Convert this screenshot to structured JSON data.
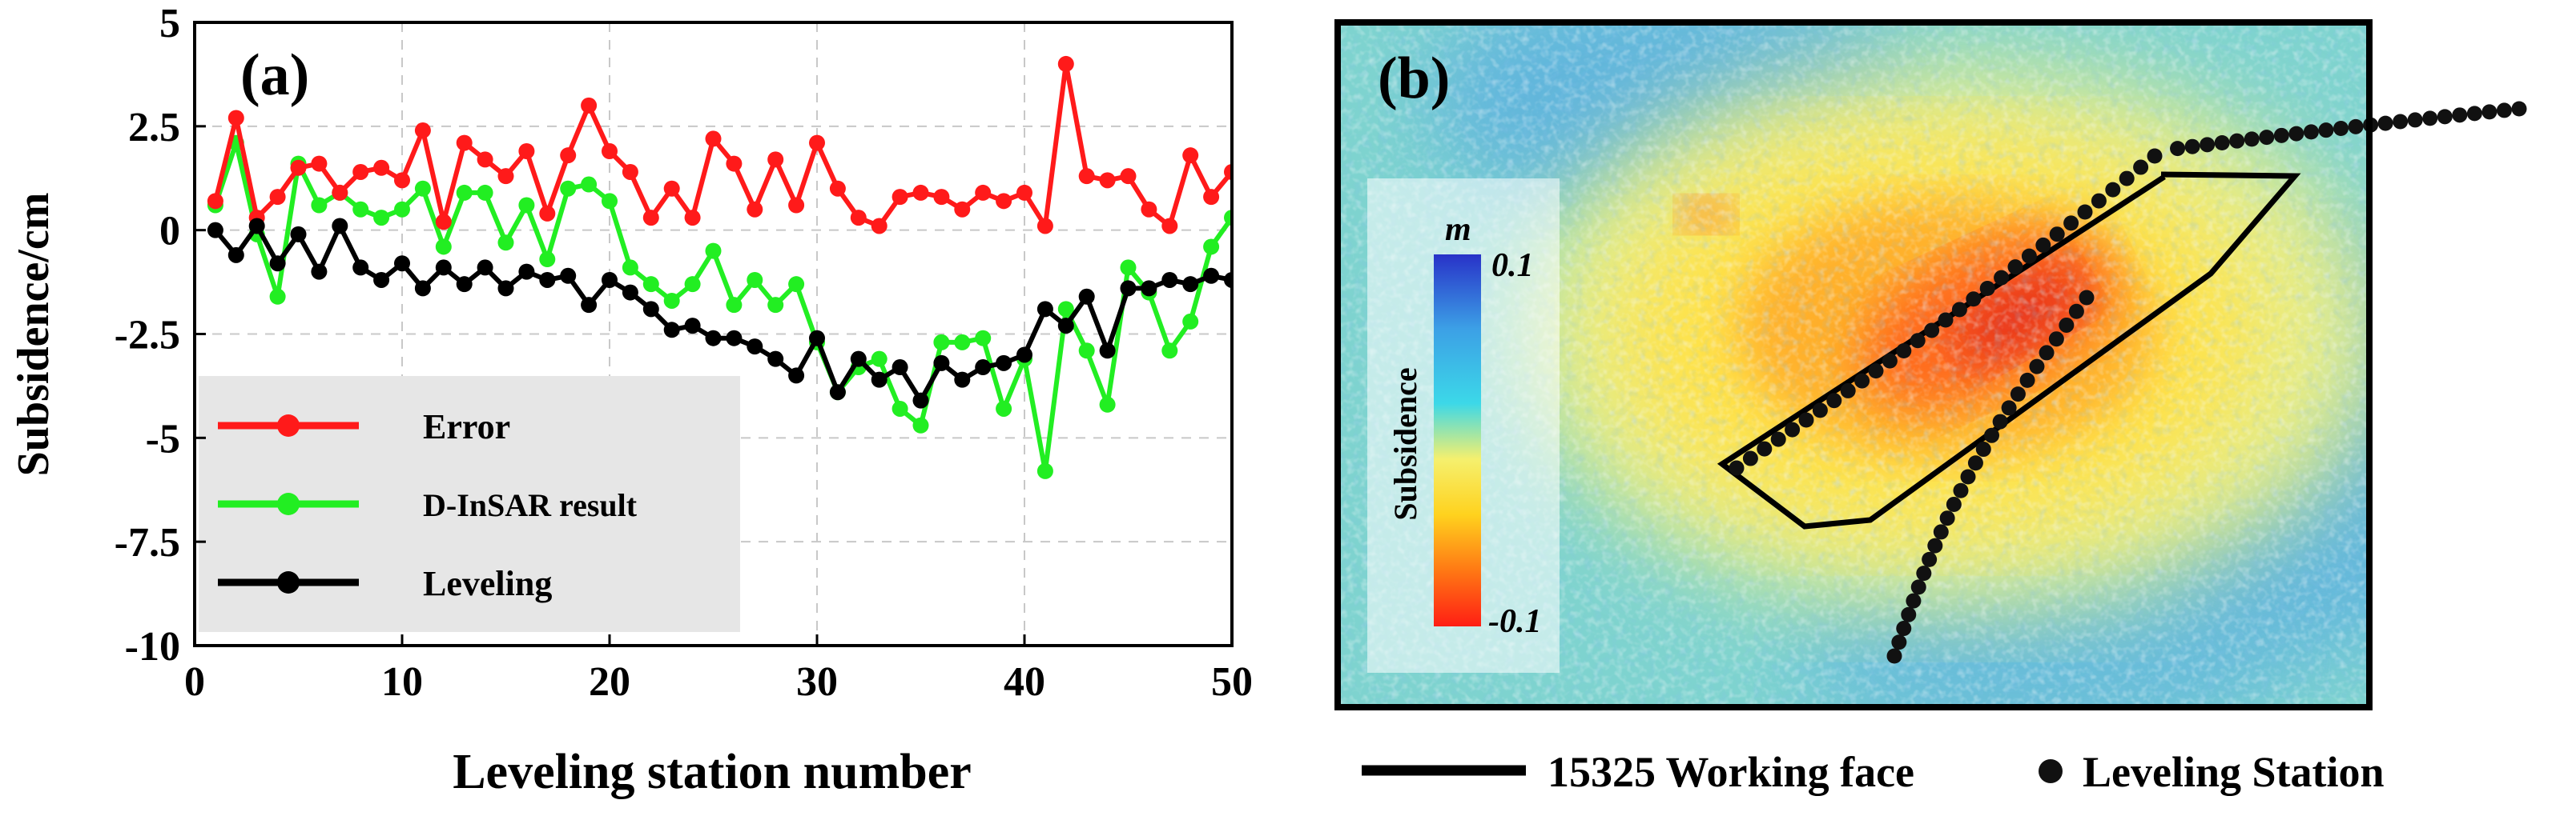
{
  "chart_data": [
    {
      "type": "line",
      "panel_label": "(a)",
      "xlabel": "Leveling station number",
      "ylabel": "Subsidence/cm",
      "xlim": [
        0,
        50
      ],
      "ylim": [
        -10,
        5
      ],
      "xticks": [
        0,
        10,
        20,
        30,
        40,
        50
      ],
      "yticks": [
        5,
        2.5,
        0,
        -2.5,
        -5,
        -7.5,
        -10
      ],
      "ytick_labels": [
        "5",
        "2.5",
        "0",
        "-2.5",
        "-5",
        "-7.5",
        "-10"
      ],
      "grid": true,
      "legend_position": "bottom-left",
      "x": [
        1,
        2,
        3,
        4,
        5,
        6,
        7,
        8,
        9,
        10,
        11,
        12,
        13,
        14,
        15,
        16,
        17,
        18,
        19,
        20,
        21,
        22,
        23,
        24,
        25,
        26,
        27,
        28,
        29,
        30,
        31,
        32,
        33,
        34,
        35,
        36,
        37,
        38,
        39,
        40,
        41,
        42,
        43,
        44,
        45,
        46,
        47,
        48,
        49,
        50
      ],
      "series": [
        {
          "name": "Error",
          "color": "#ff1a1a",
          "values": [
            0.7,
            2.7,
            0.3,
            0.8,
            1.5,
            1.6,
            0.9,
            1.4,
            1.5,
            1.2,
            2.4,
            0.2,
            2.1,
            1.7,
            1.3,
            1.9,
            0.4,
            1.8,
            3.0,
            1.9,
            1.4,
            0.3,
            1.0,
            0.3,
            2.2,
            1.6,
            0.5,
            1.7,
            0.6,
            2.1,
            1.0,
            0.3,
            0.1,
            0.8,
            0.9,
            0.8,
            0.5,
            0.9,
            0.7,
            0.9,
            0.1,
            4.0,
            1.3,
            1.2,
            1.3,
            0.5,
            0.1,
            1.8,
            0.8,
            1.4
          ]
        },
        {
          "name": "D-InSAR result",
          "color": "#22ee22",
          "values": [
            0.6,
            2.1,
            -0.1,
            -1.6,
            1.6,
            0.6,
            0.9,
            0.5,
            0.3,
            0.5,
            1.0,
            -0.4,
            0.9,
            0.9,
            -0.3,
            0.6,
            -0.7,
            1.0,
            1.1,
            0.7,
            -0.9,
            -1.3,
            -1.7,
            -1.3,
            -0.5,
            -1.8,
            -1.2,
            -1.8,
            -1.3,
            -2.7,
            -3.9,
            -3.3,
            -3.1,
            -4.3,
            -4.7,
            -2.7,
            -2.7,
            -2.6,
            -4.3,
            -3.1,
            -5.8,
            -1.9,
            -2.9,
            -4.2,
            -0.9,
            -1.5,
            -2.9,
            -2.2,
            -0.4,
            0.3
          ]
        },
        {
          "name": "Leveling",
          "color": "#000000",
          "values": [
            0.0,
            -0.6,
            0.1,
            -0.8,
            -0.1,
            -1.0,
            0.1,
            -0.9,
            -1.2,
            -0.8,
            -1.4,
            -0.9,
            -1.3,
            -0.9,
            -1.4,
            -1.0,
            -1.2,
            -1.1,
            -1.8,
            -1.2,
            -1.5,
            -1.9,
            -2.4,
            -2.3,
            -2.6,
            -2.6,
            -2.8,
            -3.1,
            -3.5,
            -2.6,
            -3.9,
            -3.1,
            -3.6,
            -3.3,
            -4.1,
            -3.2,
            -3.6,
            -3.3,
            -3.2,
            -3.0,
            -1.9,
            -2.3,
            -1.6,
            -2.9,
            -1.4,
            -1.4,
            -1.2,
            -1.3,
            -1.1,
            -1.2
          ]
        }
      ]
    },
    {
      "type": "map",
      "panel_label": "(b)",
      "colorbar": {
        "title": "Subsidence",
        "unit": "m",
        "max_label": "0.1",
        "min_label": "-0.1",
        "colors": [
          "#2832c8",
          "#3ca0e6",
          "#3cd8e8",
          "#f5f06e",
          "#ffd21e",
          "#ff7814",
          "#ff1e14"
        ]
      },
      "legend": {
        "working_face": "15325 Working face",
        "station": "Leveling Station"
      }
    }
  ]
}
